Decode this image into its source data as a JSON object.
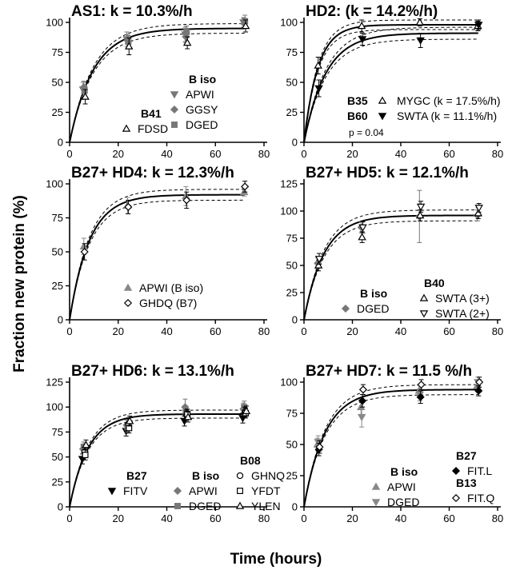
{
  "figure": {
    "y_axis_label": "Fraction new protein (%)",
    "x_axis_label": "Time (hours)"
  },
  "chart_data": [
    {
      "type": "scatter",
      "title": "AS1: k = 10.3%/h",
      "xlim": [
        0,
        80
      ],
      "ylim": [
        0,
        100
      ],
      "xticks": [
        0,
        20,
        40,
        60,
        80
      ],
      "yticks": [
        0,
        25,
        50,
        75,
        100
      ],
      "fits": [
        {
          "k": 0.103,
          "plateau": 95,
          "ci": 4
        }
      ],
      "legend_groups": [
        {
          "header": "B iso",
          "entries": [
            "APWI",
            "GGSY",
            "DGED"
          ]
        },
        {
          "header": "B41",
          "entries": [
            "FDSD"
          ]
        }
      ],
      "note": "",
      "series": [
        {
          "name": "APWI",
          "marker": "tri-down",
          "color": "#777777",
          "x": [
            6,
            24,
            48,
            72
          ],
          "y": [
            44,
            86,
            90,
            100
          ],
          "err": [
            6,
            6,
            6,
            4
          ]
        },
        {
          "name": "GGSY",
          "marker": "diamond",
          "color": "#777777",
          "x": [
            6,
            24,
            48,
            72
          ],
          "y": [
            46,
            85,
            88,
            99
          ],
          "err": [
            5,
            5,
            5,
            4
          ]
        },
        {
          "name": "DGED",
          "marker": "square",
          "color": "#777777",
          "x": [
            6,
            24,
            48,
            72
          ],
          "y": [
            43,
            84,
            92,
            101
          ],
          "err": [
            5,
            5,
            5,
            5
          ]
        },
        {
          "name": "FDSD",
          "marker": "tri-up-open",
          "color": "#000000",
          "x": [
            6,
            24,
            48,
            72
          ],
          "y": [
            38,
            80,
            83,
            97
          ],
          "err": [
            6,
            7,
            5,
            5
          ]
        }
      ]
    },
    {
      "type": "scatter",
      "title": "HD2: (k = 14.2%/h)",
      "xlim": [
        0,
        80
      ],
      "ylim": [
        0,
        100
      ],
      "xticks": [
        0,
        20,
        40,
        60,
        80
      ],
      "yticks": [
        0,
        25,
        50,
        75,
        100
      ],
      "fits": [
        {
          "k": 0.175,
          "plateau": 98,
          "ci": 4
        },
        {
          "k": 0.111,
          "plateau": 91,
          "ci": 5
        }
      ],
      "legend_groups": [
        {
          "header": "B35",
          "entries": [
            "MYGC (k = 17.5%/h)"
          ]
        },
        {
          "header": "B60",
          "entries": [
            "SWTA (k = 11.1%/h)"
          ]
        }
      ],
      "note": "p = 0.04",
      "series": [
        {
          "name": "MYGC (k = 17.5%/h)",
          "marker": "tri-up-open",
          "color": "#000000",
          "x": [
            6,
            24,
            48,
            72
          ],
          "y": [
            64,
            97,
            100,
            97
          ],
          "err": [
            7,
            5,
            3,
            4
          ]
        },
        {
          "name": "SWTA (k = 11.1%/h)",
          "marker": "tri-down",
          "color": "#000000",
          "x": [
            6,
            24,
            48,
            72
          ],
          "y": [
            45,
            86,
            85,
            98
          ],
          "err": [
            7,
            5,
            6,
            4
          ]
        }
      ]
    },
    {
      "type": "scatter",
      "title": "B27+ HD4: k = 12.3%/h",
      "xlim": [
        0,
        80
      ],
      "ylim": [
        0,
        100
      ],
      "xticks": [
        0,
        20,
        40,
        60,
        80
      ],
      "yticks": [
        0,
        25,
        50,
        75,
        100
      ],
      "fits": [
        {
          "k": 0.123,
          "plateau": 92,
          "ci": 4
        }
      ],
      "legend_groups": [
        {
          "header": "",
          "entries": [
            "APWI (B iso)",
            "GHDQ (B7)"
          ]
        }
      ],
      "note": "",
      "series": [
        {
          "name": "APWI (B iso)",
          "marker": "tri-up",
          "color": "#888888",
          "x": [
            6,
            24,
            48,
            72
          ],
          "y": [
            54,
            84,
            91,
            94
          ],
          "err": [
            6,
            6,
            7,
            3
          ]
        },
        {
          "name": "GHDQ (B7)",
          "marker": "diamond-open",
          "color": "#000000",
          "x": [
            6,
            24,
            48,
            72
          ],
          "y": [
            50,
            83,
            88,
            98
          ],
          "err": [
            6,
            5,
            6,
            4
          ]
        }
      ]
    },
    {
      "type": "scatter",
      "title": "B27+ HD5: k = 12.1%/h",
      "xlim": [
        0,
        80
      ],
      "ylim": [
        0,
        125
      ],
      "xticks": [
        0,
        20,
        40,
        60,
        80
      ],
      "yticks": [
        0,
        25,
        50,
        75,
        100,
        125
      ],
      "fits": [
        {
          "k": 0.121,
          "plateau": 96,
          "ci": 5
        }
      ],
      "legend_groups": [
        {
          "header": "B iso",
          "entries": [
            "DGED"
          ]
        },
        {
          "header": "B40",
          "entries": [
            "SWTA (3+)",
            "SWTA (2+)"
          ]
        }
      ],
      "note": "",
      "series": [
        {
          "name": "DGED",
          "marker": "diamond",
          "color": "#777777",
          "x": [
            6,
            24,
            48,
            72
          ],
          "y": [
            52,
            85,
            95,
            96
          ],
          "err": [
            5,
            5,
            24,
            5
          ]
        },
        {
          "name": "SWTA (3+)",
          "marker": "tri-up-open",
          "color": "#000000",
          "x": [
            6,
            24,
            48,
            72
          ],
          "y": [
            50,
            76,
            96,
            98
          ],
          "err": [
            5,
            5,
            5,
            5
          ]
        },
        {
          "name": "SWTA (2+)",
          "marker": "tri-down-open",
          "color": "#000000",
          "x": [
            6,
            24,
            48,
            72
          ],
          "y": [
            56,
            85,
            104,
            103
          ],
          "err": [
            5,
            5,
            5,
            4
          ]
        }
      ]
    },
    {
      "type": "scatter",
      "title": "B27+ HD6: k = 13.1%/h",
      "xlim": [
        0,
        80
      ],
      "ylim": [
        0,
        125
      ],
      "xticks": [
        0,
        20,
        40,
        60,
        80
      ],
      "yticks": [
        0,
        25,
        50,
        75,
        100,
        125
      ],
      "fits": [
        {
          "k": 0.131,
          "plateau": 93,
          "ci": 4
        }
      ],
      "legend_groups": [
        {
          "header": "B27",
          "entries": [
            "FITV"
          ]
        },
        {
          "header": "B iso",
          "entries": [
            "APWI",
            "DGED"
          ]
        },
        {
          "header": "B08",
          "entries": [
            "GHNQ",
            "YFDT",
            "YLEN"
          ]
        }
      ],
      "note": "",
      "series": [
        {
          "name": "FITV",
          "marker": "tri-down",
          "color": "#000000",
          "x": [
            6,
            24,
            48,
            72
          ],
          "y": [
            48,
            76,
            86,
            89
          ],
          "err": [
            5,
            5,
            5,
            5
          ]
        },
        {
          "name": "APWI",
          "marker": "diamond",
          "color": "#777777",
          "x": [
            6,
            24,
            48,
            72
          ],
          "y": [
            58,
            82,
            100,
            98
          ],
          "err": [
            5,
            5,
            8,
            6
          ]
        },
        {
          "name": "DGED",
          "marker": "square",
          "color": "#777777",
          "x": [
            6,
            24,
            48,
            72
          ],
          "y": [
            60,
            80,
            95,
            100
          ],
          "err": [
            5,
            5,
            5,
            6
          ]
        },
        {
          "name": "GHNQ",
          "marker": "circle-open",
          "color": "#000000",
          "x": [
            6,
            24,
            48,
            72
          ],
          "y": [
            55,
            83,
            92,
            95
          ],
          "err": [
            5,
            5,
            5,
            5
          ]
        },
        {
          "name": "YFDT",
          "marker": "square-open",
          "color": "#000000",
          "x": [
            6,
            24,
            48,
            72
          ],
          "y": [
            52,
            79,
            93,
            94
          ],
          "err": [
            5,
            5,
            5,
            5
          ]
        },
        {
          "name": "YLEN",
          "marker": "tri-up-open",
          "color": "#000000",
          "x": [
            6,
            24,
            48,
            72
          ],
          "y": [
            62,
            86,
            90,
            96
          ],
          "err": [
            5,
            5,
            5,
            5
          ]
        }
      ]
    },
    {
      "type": "scatter",
      "title": "B27+ HD7: k = 11.5 %/h",
      "xlim": [
        0,
        80
      ],
      "ylim": [
        0,
        100
      ],
      "xticks": [
        0,
        20,
        40,
        60,
        80
      ],
      "yticks": [
        0,
        25,
        50,
        75,
        100
      ],
      "fits": [
        {
          "k": 0.115,
          "plateau": 94,
          "ci": 4
        }
      ],
      "legend_groups": [
        {
          "header": "B iso",
          "entries": [
            "APWI",
            "DGED"
          ]
        },
        {
          "header": "B27",
          "entries": [
            "FIT.L"
          ]
        },
        {
          "header": "B13",
          "entries": [
            "FIT.Q"
          ]
        }
      ],
      "note": "",
      "series": [
        {
          "name": "APWI",
          "marker": "tri-up",
          "color": "#888888",
          "x": [
            6,
            24,
            48,
            72
          ],
          "y": [
            50,
            80,
            93,
            97
          ],
          "err": [
            5,
            6,
            5,
            4
          ]
        },
        {
          "name": "DGED",
          "marker": "tri-down",
          "color": "#888888",
          "x": [
            6,
            24,
            48,
            72
          ],
          "y": [
            52,
            72,
            90,
            100
          ],
          "err": [
            5,
            8,
            5,
            4
          ]
        },
        {
          "name": "FIT.L",
          "marker": "diamond",
          "color": "#000000",
          "x": [
            6,
            24,
            48,
            72
          ],
          "y": [
            46,
            85,
            88,
            93
          ],
          "err": [
            5,
            5,
            5,
            4
          ]
        },
        {
          "name": "FIT.Q",
          "marker": "diamond-open",
          "color": "#000000",
          "x": [
            6,
            24,
            48,
            72
          ],
          "y": [
            48,
            94,
            98,
            100
          ],
          "err": [
            5,
            4,
            4,
            4
          ]
        }
      ]
    }
  ]
}
